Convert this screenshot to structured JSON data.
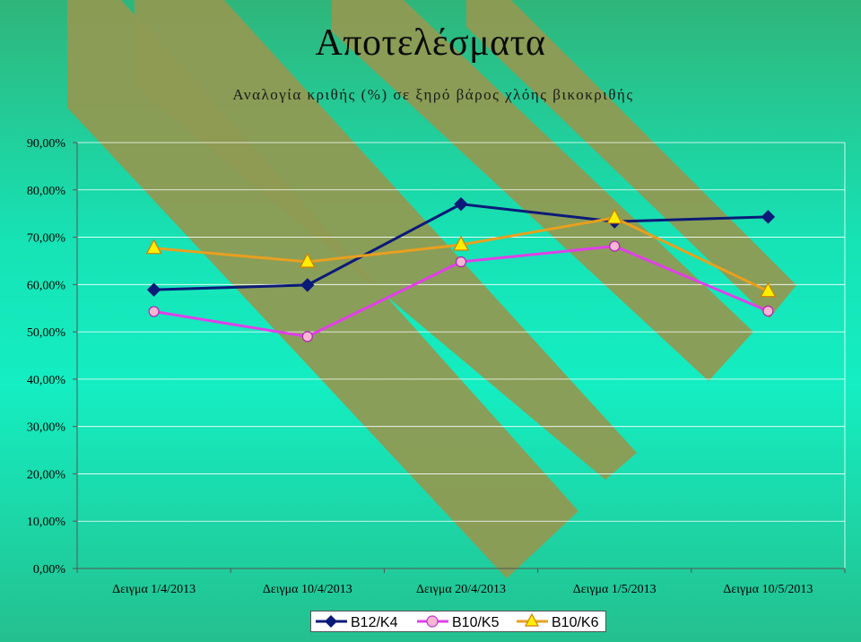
{
  "slide": {
    "title": "Αποτελέσματα"
  },
  "colors": {
    "B12_K4": "#0b1a78",
    "B10_K5": "#e040e8",
    "B10_K6": "#e8a020",
    "stripe": "#8f9a52"
  },
  "chart_data": {
    "type": "line",
    "title": "Αναλογία κριθής (%) σε ξηρό βάρος χλόης βικοκριθής",
    "xlabel": "",
    "ylabel": "",
    "ylim": [
      0,
      90
    ],
    "yticks": [
      "0,00%",
      "10,00%",
      "20,00%",
      "30,00%",
      "40,00%",
      "50,00%",
      "60,00%",
      "70,00%",
      "80,00%",
      "90,00%"
    ],
    "grid": true,
    "legend_position": "bottom",
    "categories": [
      "Δειγμα 1/4/2013",
      "Δειγμα 10/4/2013",
      "Δειγμα 20/4/2013",
      "Δειγμα 1/5/2013",
      "Δειγμα 10/5/2013"
    ],
    "series": [
      {
        "name": "B12/K4",
        "marker": "diamond",
        "values": [
          58.9,
          59.9,
          77.0,
          73.3,
          74.3
        ]
      },
      {
        "name": "B10/K5",
        "marker": "circle",
        "values": [
          54.3,
          49.0,
          64.8,
          68.1,
          54.4
        ]
      },
      {
        "name": "B10/K6",
        "marker": "triangle",
        "values": [
          67.7,
          64.8,
          68.4,
          74.1,
          58.6
        ]
      }
    ]
  }
}
